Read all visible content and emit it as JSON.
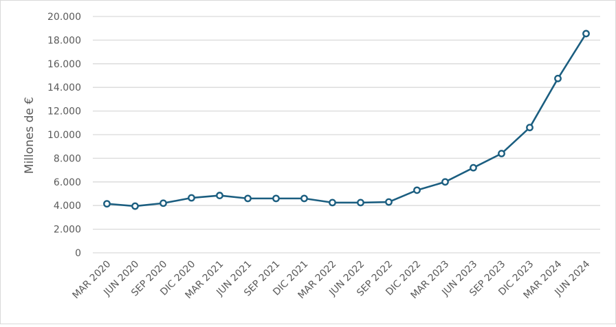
{
  "chart_data": {
    "type": "line",
    "title": "",
    "xlabel": "",
    "ylabel": "Millones de €",
    "ylim": [
      0,
      20000
    ],
    "yticks": [
      0,
      2000,
      4000,
      6000,
      8000,
      10000,
      12000,
      14000,
      16000,
      18000,
      20000
    ],
    "ytick_labels": [
      "0",
      "2.000",
      "4.000",
      "6.000",
      "8.000",
      "10.000",
      "12.000",
      "14.000",
      "16.000",
      "18.000",
      "20.000"
    ],
    "grid": true,
    "categories": [
      "MAR 2020",
      "JUN 2020",
      "SEP 2020",
      "DIC 2020",
      "MAR 2021",
      "JUN 2021",
      "SEP 2021",
      "DIC 2021",
      "MAR 2022",
      "JUN 2022",
      "SEP 2022",
      "DIC 2022",
      "MAR 2023",
      "JUN 2023",
      "SEP 2023",
      "DIC 2023",
      "MAR 2024",
      "JUN 2024"
    ],
    "series": [
      {
        "values": [
          4150,
          3950,
          4200,
          4650,
          4850,
          4600,
          4600,
          4600,
          4250,
          4250,
          4300,
          5300,
          6000,
          7200,
          8400,
          10600,
          14750,
          18550
        ]
      }
    ],
    "colors": {
      "line": "#1b5e80",
      "grid": "#d9d9d9",
      "marker_fill": "#ffffff"
    }
  }
}
